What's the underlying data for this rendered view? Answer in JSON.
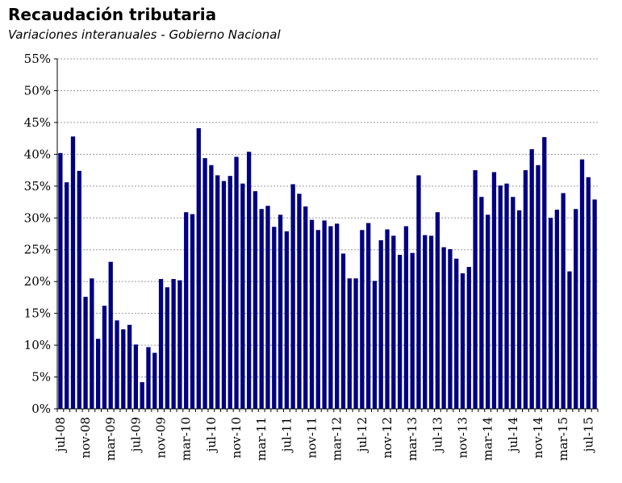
{
  "title": "Recaudación tributaria",
  "subtitle": "Variaciones interanuales - Gobierno Nacional",
  "colors": {
    "bar": "#000080",
    "grid": "#9a9a9a",
    "axis": "#000000"
  },
  "chart_data": {
    "type": "bar",
    "ylim": [
      0,
      55
    ],
    "yticks": [
      0,
      5,
      10,
      15,
      20,
      25,
      30,
      35,
      40,
      45,
      50,
      55
    ],
    "ytick_suffix": "%",
    "grid": true,
    "categories": [
      "jul-08",
      "ago-08",
      "sep-08",
      "oct-08",
      "nov-08",
      "dic-08",
      "ene-09",
      "feb-09",
      "mar-09",
      "abr-09",
      "may-09",
      "jun-09",
      "jul-09",
      "ago-09",
      "sep-09",
      "oct-09",
      "nov-09",
      "dic-09",
      "ene-10",
      "feb-10",
      "mar-10",
      "abr-10",
      "may-10",
      "jun-10",
      "jul-10",
      "ago-10",
      "sep-10",
      "oct-10",
      "nov-10",
      "dic-10",
      "ene-11",
      "feb-11",
      "mar-11",
      "abr-11",
      "may-11",
      "jun-11",
      "jul-11",
      "ago-11",
      "sep-11",
      "oct-11",
      "nov-11",
      "dic-11",
      "ene-12",
      "feb-12",
      "mar-12",
      "abr-12",
      "may-12",
      "jun-12",
      "jul-12",
      "ago-12",
      "sep-12",
      "oct-12",
      "nov-12",
      "dic-12",
      "ene-13",
      "feb-13",
      "mar-13",
      "abr-13",
      "may-13",
      "jun-13",
      "jul-13",
      "ago-13",
      "sep-13",
      "oct-13",
      "nov-13",
      "dic-13",
      "ene-14",
      "feb-14",
      "mar-14",
      "abr-14",
      "may-14",
      "jun-14",
      "jul-14",
      "ago-14",
      "sep-14",
      "oct-14",
      "nov-14",
      "dic-14",
      "ene-15",
      "feb-15",
      "mar-15",
      "abr-15",
      "may-15",
      "jun-15",
      "jul-15",
      "ago-15"
    ],
    "xticklabels": [
      "jul-08",
      "nov-08",
      "mar-09",
      "jul-09",
      "nov-09",
      "mar-10",
      "jul-10",
      "nov-10",
      "mar-11",
      "jul-11",
      "nov-11",
      "mar-12",
      "jul-12",
      "nov-12",
      "mar-13",
      "jul-13",
      "nov-13",
      "mar-14",
      "jul-14",
      "nov-14",
      "mar-15",
      "jul-15"
    ],
    "values": [
      40.2,
      35.6,
      42.8,
      37.4,
      17.6,
      20.5,
      11.0,
      16.2,
      23.1,
      13.9,
      12.5,
      13.2,
      10.1,
      4.2,
      9.7,
      8.8,
      20.4,
      19.1,
      20.4,
      20.2,
      30.9,
      30.6,
      44.1,
      39.4,
      38.3,
      36.7,
      35.8,
      36.6,
      39.6,
      35.4,
      40.4,
      34.2,
      31.4,
      31.9,
      28.6,
      30.5,
      27.9,
      35.3,
      33.8,
      31.8,
      29.7,
      28.1,
      29.6,
      28.7,
      29.1,
      24.4,
      20.5,
      20.5,
      28.1,
      29.2,
      20.1,
      26.5,
      28.2,
      27.2,
      24.2,
      28.7,
      24.5,
      36.7,
      27.3,
      27.2,
      30.9,
      25.4,
      25.1,
      23.6,
      21.3,
      22.3,
      37.5,
      33.3,
      30.5,
      37.2,
      35.1,
      35.4,
      33.3,
      31.2,
      37.5,
      40.8,
      38.3,
      42.7,
      30.0,
      31.3,
      33.9,
      21.6,
      31.4,
      39.2,
      36.4,
      32.9
    ]
  }
}
